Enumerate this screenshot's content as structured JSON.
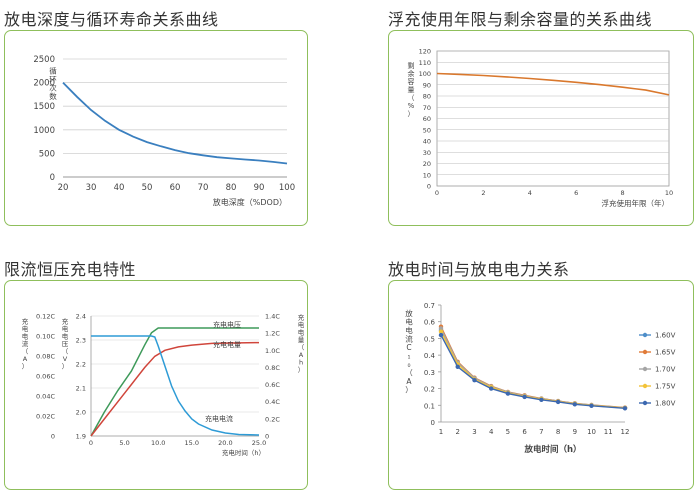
{
  "titles": {
    "c1": "放电深度与循环寿命关系曲线",
    "c2": "浮充使用年限与剩余容量的关系曲线",
    "c3": "限流恒压充电特性",
    "c4": "放电时间与放电电力关系"
  },
  "chart_data": [
    {
      "type": "line",
      "title": "放电深度与循环寿命关系曲线",
      "xlabel": "放电深度（%DOD）",
      "ylabel": "循环次数",
      "xlim": [
        20,
        100
      ],
      "ylim": [
        0,
        2500
      ],
      "xticks": [
        "20",
        "30",
        "40",
        "50",
        "60",
        "70",
        "80",
        "90",
        "100"
      ],
      "yticks": [
        "0",
        "500",
        "1000",
        "1500",
        "2000",
        "2500"
      ],
      "grid": "horizontal",
      "color": "#3a7fbf",
      "series": [
        {
          "x": [
            20,
            25,
            30,
            35,
            40,
            45,
            50,
            55,
            60,
            65,
            70,
            75,
            80,
            85,
            90,
            95,
            100
          ],
          "y": [
            2000,
            1700,
            1420,
            1190,
            1000,
            855,
            740,
            650,
            570,
            505,
            460,
            420,
            395,
            370,
            350,
            320,
            285
          ]
        }
      ]
    },
    {
      "type": "line",
      "title": "浮充使用年限与剩余容量的关系曲线",
      "xlabel": "浮充使用年限（年）",
      "ylabel": "剩余容量（%）",
      "xlim": [
        0,
        10
      ],
      "ylim": [
        0,
        120
      ],
      "xticks": [
        "0",
        "2",
        "4",
        "6",
        "8",
        "10"
      ],
      "yticks": [
        "0",
        "10",
        "20",
        "30",
        "40",
        "50",
        "60",
        "70",
        "80",
        "90",
        "100",
        "110",
        "120"
      ],
      "grid": "horizontal",
      "color": "#d9782d",
      "series": [
        {
          "x": [
            0,
            1,
            2,
            3,
            4,
            5,
            6,
            7,
            8,
            9,
            10
          ],
          "y": [
            100,
            99.2,
            98.2,
            97,
            95.6,
            94,
            92.2,
            90.1,
            87.8,
            85.2,
            81
          ]
        }
      ]
    },
    {
      "type": "line",
      "title": "限流恒压充电特性",
      "xlabel": "充电时间（h）",
      "xlim": [
        0,
        25
      ],
      "xticks": [
        "0",
        "5.0",
        "10.0",
        "15.0",
        "20.0",
        "25.0"
      ],
      "y_axes": [
        {
          "label": "充电电流（A）",
          "ticks": [
            "0",
            "0.02C",
            "0.04C",
            "0.06C",
            "0.08C",
            "0.10C",
            "0.12C"
          ],
          "range": [
            0,
            0.12
          ]
        },
        {
          "label": "充电电压（V）",
          "ticks": [
            "1.9",
            "2.0",
            "2.1",
            "2.2",
            "2.3",
            "2.4"
          ],
          "range": [
            1.9,
            2.4
          ]
        },
        {
          "label": "充电电量（Ah）",
          "ticks": [
            "0",
            "0.2C",
            "0.4C",
            "0.6C",
            "0.8C",
            "1.0C",
            "1.2C",
            "1.4C"
          ],
          "range": [
            0,
            1.4
          ]
        }
      ],
      "grid": "horizontal",
      "series": [
        {
          "name": "充电电压",
          "axis": 1,
          "color": "#3e9a5a",
          "x": [
            0,
            2,
            4,
            6,
            8,
            9,
            10,
            12,
            15,
            20,
            25
          ],
          "y": [
            1.9,
            2.0,
            2.09,
            2.17,
            2.28,
            2.33,
            2.35,
            2.35,
            2.35,
            2.35,
            2.35
          ]
        },
        {
          "name": "充电电量",
          "axis": 2,
          "color": "#d0453b",
          "x": [
            0,
            2,
            4,
            6,
            8,
            9.5,
            11,
            13,
            15,
            18,
            21,
            25
          ],
          "y": [
            0,
            0.2,
            0.4,
            0.6,
            0.8,
            0.93,
            1.0,
            1.04,
            1.06,
            1.08,
            1.085,
            1.09
          ]
        },
        {
          "name": "充电电流",
          "axis": 0,
          "color": "#2e9bd6",
          "x": [
            0,
            2,
            4,
            6,
            8,
            9,
            9.5,
            10,
            11,
            12,
            13,
            14,
            15,
            16,
            18,
            20,
            22,
            25
          ],
          "y": [
            0.1,
            0.1,
            0.1,
            0.1,
            0.1,
            0.1,
            0.099,
            0.09,
            0.07,
            0.05,
            0.035,
            0.025,
            0.017,
            0.012,
            0.006,
            0.003,
            0.0015,
            0.001
          ]
        }
      ]
    },
    {
      "type": "line",
      "title": "放电时间与放电电力关系",
      "xlabel": "放电时间（h）",
      "ylabel": "放电电流C₁₀（A）",
      "xlim": [
        1,
        12
      ],
      "ylim": [
        0,
        0.7
      ],
      "xticks": [
        "1",
        "2",
        "3",
        "4",
        "5",
        "6",
        "7",
        "8",
        "9",
        "10",
        "11",
        "12"
      ],
      "yticks": [
        "0",
        "0.1",
        "0.2",
        "0.3",
        "0.4",
        "0.5",
        "0.6",
        "0.7"
      ],
      "grid": "none",
      "legend": "right",
      "x": [
        1,
        2,
        3,
        4,
        5,
        6,
        7,
        8,
        9,
        10,
        12
      ],
      "series": [
        {
          "name": "1.60V",
          "color": "#4e8ec9",
          "values": [
            0.55,
            0.35,
            0.26,
            0.21,
            0.175,
            0.155,
            0.14,
            0.125,
            0.11,
            0.1,
            0.085
          ]
        },
        {
          "name": "1.65V",
          "color": "#e07b39",
          "values": [
            0.57,
            0.36,
            0.265,
            0.215,
            0.18,
            0.16,
            0.14,
            0.125,
            0.112,
            0.102,
            0.086
          ]
        },
        {
          "name": "1.70V",
          "color": "#a5a5a5",
          "values": [
            0.56,
            0.355,
            0.262,
            0.212,
            0.178,
            0.157,
            0.139,
            0.124,
            0.111,
            0.101,
            0.085
          ]
        },
        {
          "name": "1.75V",
          "color": "#f2c33a",
          "values": [
            0.54,
            0.345,
            0.255,
            0.208,
            0.174,
            0.153,
            0.137,
            0.122,
            0.109,
            0.099,
            0.084
          ]
        },
        {
          "name": "1.80V",
          "color": "#3c68b0",
          "values": [
            0.52,
            0.33,
            0.25,
            0.2,
            0.17,
            0.15,
            0.133,
            0.12,
            0.106,
            0.097,
            0.082
          ]
        }
      ]
    }
  ]
}
